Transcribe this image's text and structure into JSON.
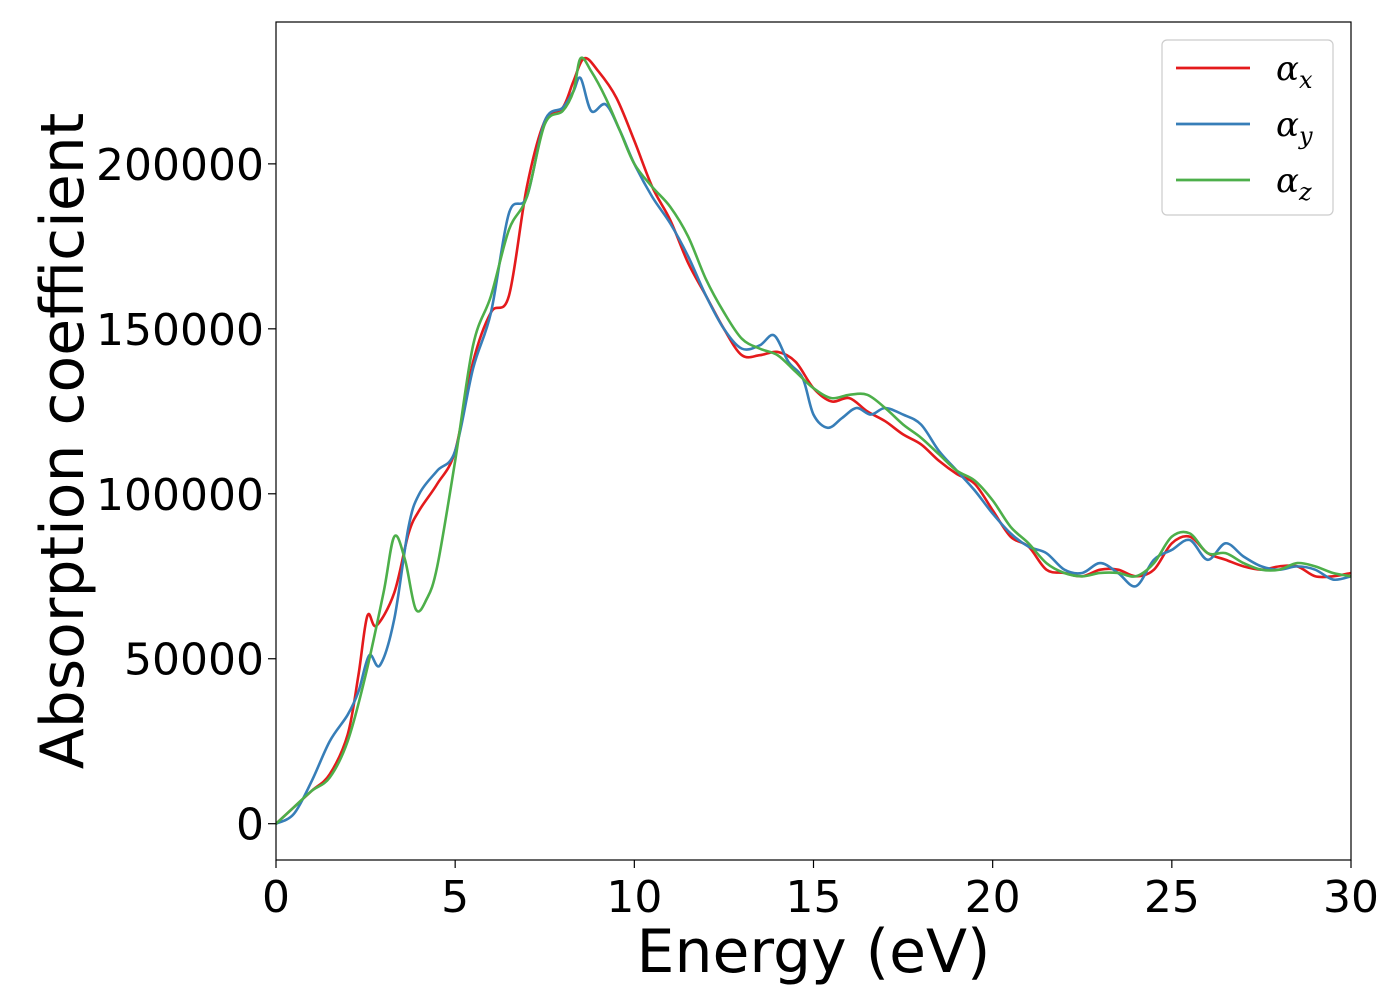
{
  "chart_data": {
    "type": "line",
    "xlabel": "Energy (eV)",
    "ylabel": "Absorption coefficient",
    "xlim": [
      0,
      30
    ],
    "ylim": [
      -11000,
      243000
    ],
    "xticks": [
      0,
      5,
      10,
      15,
      20,
      25,
      30
    ],
    "xtick_labels": [
      "0",
      "5",
      "10",
      "15",
      "20",
      "25",
      "30"
    ],
    "yticks": [
      0,
      50000,
      100000,
      150000,
      200000
    ],
    "ytick_labels": [
      "0",
      "50000",
      "100000",
      "150000",
      "200000"
    ],
    "grid": false,
    "legend_position": "top-right",
    "series": [
      {
        "name": "α_x",
        "legend_symbol": "α",
        "legend_sub": "x",
        "color": "#e41a1c",
        "x": [
          0,
          0.5,
          1,
          1.5,
          2,
          2.3,
          2.55,
          2.8,
          3.3,
          3.7,
          4,
          4.5,
          5,
          5.5,
          6,
          6.5,
          7,
          7.5,
          8,
          8.3,
          8.6,
          9,
          9.5,
          10,
          10.5,
          11,
          11.5,
          12,
          12.5,
          13,
          13.5,
          14,
          14.5,
          15,
          15.5,
          16,
          16.5,
          17,
          17.5,
          18,
          18.5,
          19,
          19.5,
          20,
          20.5,
          21,
          21.5,
          22,
          22.5,
          23,
          23.5,
          24,
          24.5,
          25,
          25.5,
          26,
          26.5,
          27,
          27.5,
          28,
          28.5,
          29,
          29.5,
          30
        ],
        "y": [
          0,
          5000,
          10000,
          15000,
          27000,
          45000,
          63000,
          60000,
          70000,
          88000,
          95000,
          103000,
          113000,
          140000,
          155000,
          160000,
          193000,
          213000,
          217000,
          225000,
          232000,
          228000,
          220000,
          207000,
          193000,
          183000,
          170000,
          160000,
          150000,
          142000,
          142000,
          143000,
          140000,
          132000,
          128000,
          129000,
          125000,
          122000,
          118000,
          115000,
          110000,
          106000,
          103000,
          95000,
          87000,
          84000,
          77000,
          76000,
          75000,
          77000,
          77000,
          75000,
          77000,
          85000,
          87000,
          82000,
          80000,
          78000,
          77000,
          78000,
          78000,
          75000,
          75000,
          76000
        ]
      },
      {
        "name": "α_y",
        "legend_symbol": "α",
        "legend_sub": "y",
        "color": "#377eb8",
        "x": [
          0,
          0.5,
          1,
          1.5,
          2,
          2.3,
          2.6,
          2.9,
          3.3,
          3.7,
          4,
          4.5,
          5,
          5.5,
          6,
          6.5,
          7,
          7.5,
          8,
          8.3,
          8.5,
          8.8,
          9.2,
          9.6,
          10,
          10.5,
          11,
          11.5,
          12,
          12.5,
          13,
          13.5,
          13.9,
          14.3,
          14.7,
          15,
          15.4,
          15.8,
          16.2,
          16.6,
          17,
          17.5,
          18,
          18.5,
          19,
          19.5,
          20,
          20.5,
          21,
          21.5,
          22,
          22.5,
          23,
          23.5,
          24,
          24.5,
          25,
          25.5,
          26,
          26.5,
          27,
          27.5,
          28,
          28.5,
          29,
          29.5,
          30
        ],
        "y": [
          0,
          3000,
          13000,
          25000,
          33000,
          40000,
          51000,
          48000,
          62000,
          90000,
          100000,
          107000,
          113000,
          138000,
          155000,
          185000,
          190000,
          213000,
          217000,
          222000,
          226000,
          216000,
          218000,
          210000,
          200000,
          190000,
          182000,
          172000,
          160000,
          150000,
          144000,
          145000,
          148000,
          140000,
          135000,
          124000,
          120000,
          123000,
          126000,
          124000,
          126000,
          124000,
          121000,
          113000,
          107000,
          101000,
          94000,
          88000,
          84000,
          82000,
          77000,
          76000,
          79000,
          76000,
          72000,
          80000,
          83000,
          86000,
          80000,
          85000,
          81000,
          78000,
          77000,
          78000,
          77000,
          74000,
          75000
        ]
      },
      {
        "name": "α_z",
        "legend_symbol": "α",
        "legend_sub": "z",
        "color": "#4daf4a",
        "x": [
          0,
          0.5,
          1,
          1.5,
          2,
          2.5,
          3,
          3.3,
          3.6,
          3.9,
          4.2,
          4.5,
          5,
          5.5,
          6,
          6.5,
          7,
          7.5,
          8,
          8.3,
          8.5,
          8.8,
          9.2,
          9.6,
          10,
          10.5,
          11,
          11.5,
          12,
          12.5,
          13,
          13.5,
          14,
          14.5,
          15,
          15.5,
          16,
          16.5,
          17,
          17.5,
          18,
          18.5,
          19,
          19.5,
          20,
          20.5,
          21,
          21.5,
          22,
          22.5,
          23,
          23.5,
          24,
          24.5,
          25,
          25.5,
          26,
          26.5,
          27,
          27.5,
          28,
          28.5,
          29,
          29.5,
          30
        ],
        "y": [
          0,
          5000,
          10000,
          14000,
          25000,
          45000,
          70000,
          87000,
          80000,
          65000,
          68000,
          78000,
          110000,
          145000,
          160000,
          180000,
          190000,
          212000,
          216000,
          222000,
          232000,
          228000,
          220000,
          210000,
          200000,
          193000,
          187000,
          178000,
          165000,
          155000,
          147000,
          144000,
          142000,
          137000,
          132000,
          129000,
          130000,
          130000,
          126000,
          121000,
          117000,
          112000,
          107000,
          104000,
          98000,
          90000,
          85000,
          79000,
          76000,
          75000,
          76000,
          76000,
          75000,
          79000,
          87000,
          88000,
          82000,
          82000,
          79000,
          77000,
          77000,
          79000,
          78000,
          76000,
          75000
        ]
      }
    ]
  }
}
